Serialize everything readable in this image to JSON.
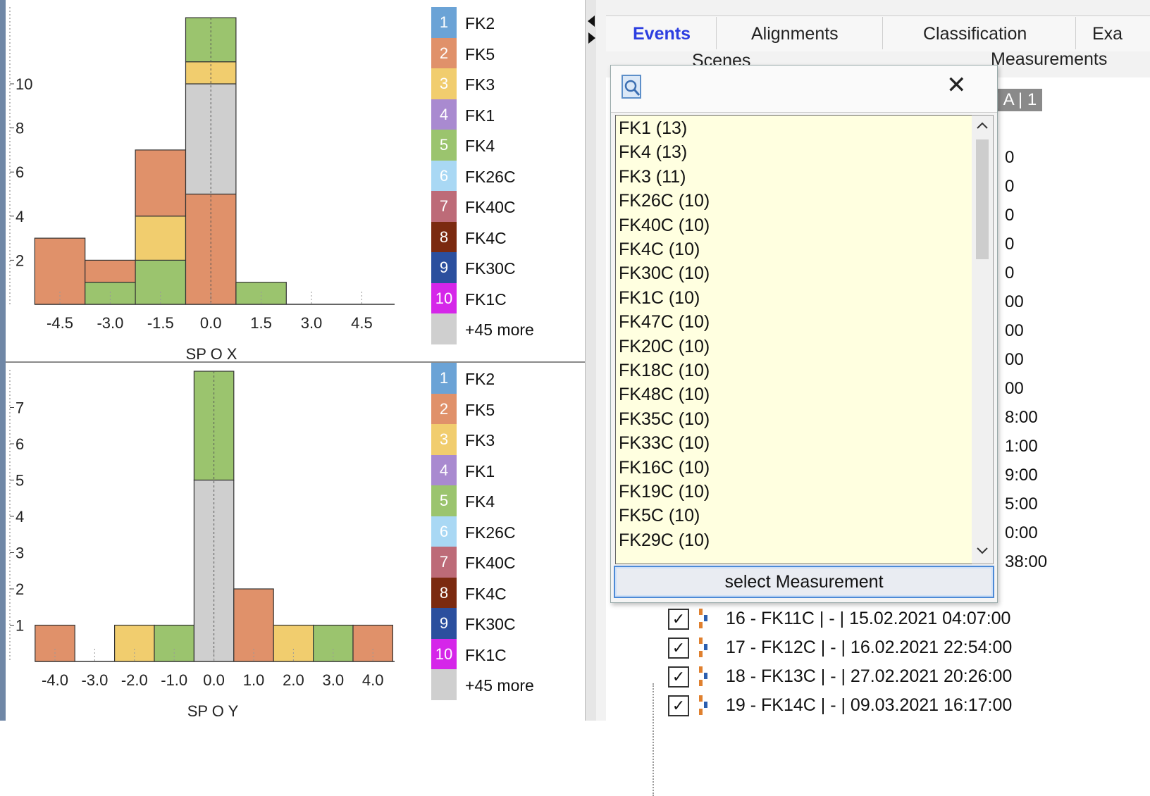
{
  "left_panels": {
    "top": {
      "x_ticks": [
        "-4.5",
        "-3.0",
        "-1.5",
        "0.0",
        "1.5",
        "3.0",
        "4.5"
      ],
      "y_ticks": [
        "2",
        "4",
        "6",
        "8",
        "10"
      ],
      "xlabel": "SP O X"
    },
    "bottom": {
      "x_ticks": [
        "-4.0",
        "-3.0",
        "-2.0",
        "-1.0",
        "0.0",
        "1.0",
        "2.0",
        "3.0",
        "4.0"
      ],
      "y_ticks": [
        "1",
        "2",
        "3",
        "4",
        "5",
        "6",
        "7"
      ],
      "xlabel": "SP O Y"
    }
  },
  "legend": [
    {
      "num": "1",
      "label": "FK2",
      "color": "#6ba3d6"
    },
    {
      "num": "2",
      "label": "FK5",
      "color": "#e0916a"
    },
    {
      "num": "3",
      "label": "FK3",
      "color": "#f1cd6e"
    },
    {
      "num": "4",
      "label": "FK1",
      "color": "#a98ad0"
    },
    {
      "num": "5",
      "label": "FK4",
      "color": "#9bc46e"
    },
    {
      "num": "6",
      "label": "FK26C",
      "color": "#a9d8f4"
    },
    {
      "num": "7",
      "label": "FK40C",
      "color": "#bd6b78"
    },
    {
      "num": "8",
      "label": "FK4C",
      "color": "#7b2a10"
    },
    {
      "num": "9",
      "label": "FK30C",
      "color": "#2b4f9e"
    },
    {
      "num": "10",
      "label": "FK1C",
      "color": "#d526e9"
    },
    {
      "num": "",
      "label": "+45 more",
      "color": "#cfcfcf"
    }
  ],
  "chart_data": [
    {
      "type": "bar",
      "xlabel": "SP O X",
      "ylim": [
        0,
        13
      ],
      "bin_width": 1.5,
      "bars": [
        {
          "x": -4.5,
          "segments": [
            {
              "series": "FK5",
              "value": 3
            }
          ]
        },
        {
          "x": -3.0,
          "segments": [
            {
              "series": "FK4",
              "value": 1
            },
            {
              "series": "FK5",
              "value": 1
            }
          ]
        },
        {
          "x": -1.5,
          "segments": [
            {
              "series": "FK4",
              "value": 2
            },
            {
              "series": "FK3",
              "value": 2
            },
            {
              "series": "FK5",
              "value": 3
            }
          ]
        },
        {
          "x": 0.0,
          "segments": [
            {
              "series": "FK5",
              "value": 5
            },
            {
              "series": "+45 more",
              "value": 5
            },
            {
              "series": "FK3",
              "value": 1
            },
            {
              "series": "FK4",
              "value": 2
            }
          ]
        },
        {
          "x": 1.5,
          "segments": [
            {
              "series": "FK4",
              "value": 1
            }
          ]
        }
      ]
    },
    {
      "type": "bar",
      "xlabel": "SP O Y",
      "ylim": [
        0,
        8
      ],
      "bin_width": 1.0,
      "bars": [
        {
          "x": -4.0,
          "segments": [
            {
              "series": "FK5",
              "value": 1
            }
          ]
        },
        {
          "x": -2.0,
          "segments": [
            {
              "series": "FK3",
              "value": 1
            }
          ]
        },
        {
          "x": -1.0,
          "segments": [
            {
              "series": "FK4",
              "value": 1
            }
          ]
        },
        {
          "x": 0.0,
          "segments": [
            {
              "series": "+45 more",
              "value": 5
            },
            {
              "series": "FK4",
              "value": 3
            }
          ]
        },
        {
          "x": 1.0,
          "segments": [
            {
              "series": "FK5",
              "value": 2
            }
          ]
        },
        {
          "x": 2.0,
          "segments": [
            {
              "series": "FK3",
              "value": 1
            }
          ]
        },
        {
          "x": 3.0,
          "segments": [
            {
              "series": "FK4",
              "value": 1
            }
          ]
        },
        {
          "x": 4.0,
          "segments": [
            {
              "series": "FK5",
              "value": 1
            }
          ]
        }
      ]
    }
  ],
  "tabs": {
    "events": "Events",
    "alignments": "Alignments",
    "classification": "Classification",
    "exa": "Exa",
    "scenes": "Scenes",
    "measurements": "Measurements"
  },
  "bg_badge": "| A | 1",
  "bg_time_fragments": [
    "0",
    "0",
    "0",
    "0",
    "0",
    "00",
    "00",
    "00",
    "00",
    "8:00",
    "1:00",
    "9:00",
    "5:00",
    "0:00",
    "38:00"
  ],
  "rows": [
    {
      "text": "16 - FK11C | - | 15.02.2021 04:07:00"
    },
    {
      "text": "17 - FK12C | - | 16.02.2021 22:54:00"
    },
    {
      "text": "18 - FK13C | - | 27.02.2021 20:26:00"
    },
    {
      "text": "19 - FK14C | - | 09.03.2021 16:17:00"
    }
  ],
  "popup": {
    "close_symbol": "✕",
    "items": [
      "FK1 (13)",
      "FK4 (13)",
      "FK3 (11)",
      "FK26C (10)",
      "FK40C (10)",
      "FK4C (10)",
      "FK30C (10)",
      "FK1C (10)",
      "FK47C (10)",
      "FK20C (10)",
      "FK18C (10)",
      "FK48C (10)",
      "FK35C (10)",
      "FK33C (10)",
      "FK16C (10)",
      "FK19C (10)",
      "FK5C (10)",
      "FK29C (10)"
    ],
    "select_label": "select Measurement"
  }
}
